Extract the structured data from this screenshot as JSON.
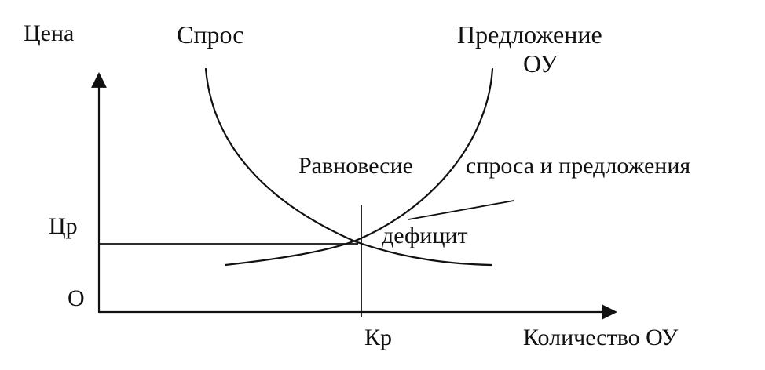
{
  "labels": {
    "y_axis": "Цена",
    "demand": "Спрос",
    "supply_line1": "Предложение",
    "supply_line2": "ОУ",
    "equilibrium_part1": "Равновесие",
    "equilibrium_part2": "спроса и предложения",
    "deficit": "дефицит",
    "price_eq": "Цр",
    "origin": "О",
    "quantity_eq": "Кр",
    "x_axis": "Количество ОУ"
  },
  "colors": {
    "ink": "#111111",
    "background": "#ffffff"
  }
}
